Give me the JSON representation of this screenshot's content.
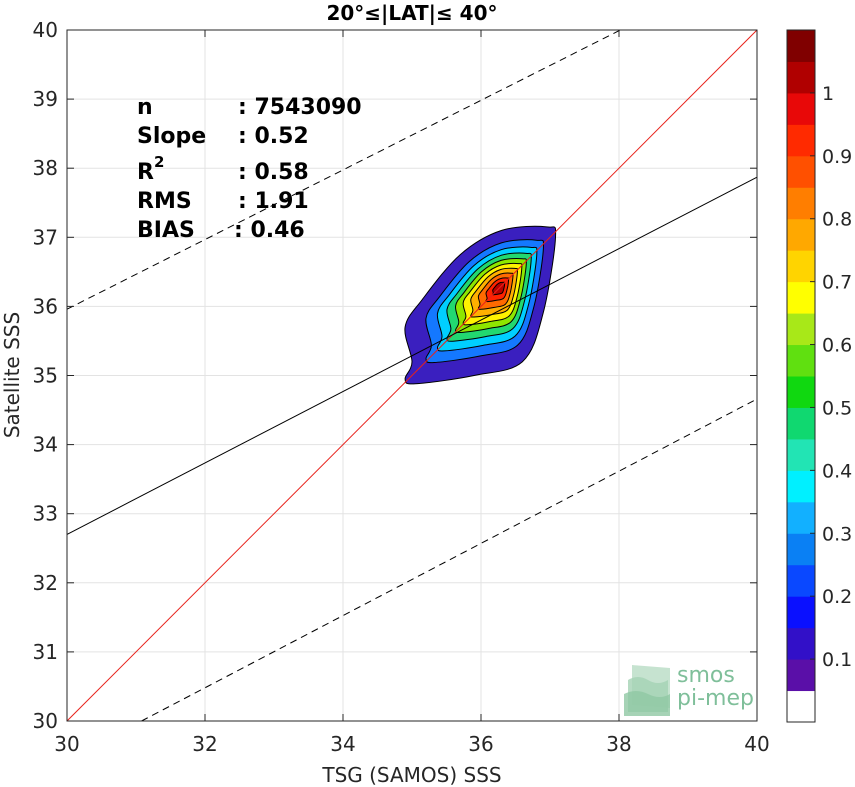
{
  "chart_data": {
    "type": "heatmap",
    "title": "20°≤|LAT|≤ 40°",
    "xlabel": "TSG (SAMOS) SSS",
    "ylabel": "Satellite SSS",
    "xlim": [
      30,
      40
    ],
    "ylim": [
      30,
      40
    ],
    "xticks": [
      "30",
      "32",
      "34",
      "36",
      "38",
      "40"
    ],
    "yticks": [
      "30",
      "31",
      "32",
      "33",
      "34",
      "35",
      "36",
      "37",
      "38",
      "39",
      "40"
    ],
    "grid": true,
    "stats": [
      {
        "label": "n",
        "value": ": 7543090"
      },
      {
        "label": "Slope",
        "value": ": 0.52"
      },
      {
        "label": "R",
        "sup": "2",
        "value": ": 0.58"
      },
      {
        "label": "RMS",
        "value": ": 1.91"
      },
      {
        "label": "BIAS",
        "value": ": 0.46"
      }
    ],
    "lines": [
      {
        "name": "one-to-one",
        "color": "#e8221b",
        "style": "solid",
        "x": [
          30,
          40
        ],
        "y": [
          30,
          40
        ]
      },
      {
        "name": "regression",
        "color": "#000000",
        "style": "solid",
        "x": [
          30,
          40
        ],
        "y": [
          32.7,
          37.87
        ]
      },
      {
        "name": "upper-bound",
        "color": "#000000",
        "style": "dashed",
        "x": [
          30,
          38.02
        ],
        "y": [
          35.96,
          40
        ]
      },
      {
        "name": "lower-bound",
        "color": "#000000",
        "style": "dashed",
        "x": [
          31.08,
          40
        ],
        "y": [
          30,
          34.66
        ]
      }
    ],
    "density_contours": {
      "center": [
        36.28,
        36.28
      ],
      "levels": [
        {
          "level": 0.05,
          "color": "#3a1fbf"
        },
        {
          "level": 0.15,
          "color": "#1478ff"
        },
        {
          "level": 0.25,
          "color": "#00cfff"
        },
        {
          "level": 0.35,
          "color": "#22d870"
        },
        {
          "level": 0.45,
          "color": "#8ee600"
        },
        {
          "level": 0.55,
          "color": "#fff200"
        },
        {
          "level": 0.65,
          "color": "#ffb000"
        },
        {
          "level": 0.75,
          "color": "#ff6a00"
        },
        {
          "level": 0.85,
          "color": "#ff2200"
        },
        {
          "level": 0.95,
          "color": "#b80000"
        }
      ]
    },
    "colorbar": {
      "ticks": [
        "0.1",
        "0.2",
        "0.3",
        "0.4",
        "0.5",
        "0.6",
        "0.7",
        "0.8",
        "0.9",
        "1"
      ],
      "colors": [
        "#ffffff",
        "#5a0fa8",
        "#3210c8",
        "#0a10ff",
        "#0a48ff",
        "#0a80f4",
        "#12b0ff",
        "#00f0ff",
        "#22e4b4",
        "#10d870",
        "#10d810",
        "#60e010",
        "#a8e818",
        "#ffff00",
        "#ffd400",
        "#ffa800",
        "#ff7e00",
        "#ff5000",
        "#ff2a00",
        "#e80808",
        "#b00000",
        "#800000"
      ]
    },
    "watermark": {
      "line1": "smos",
      "line2": "pi-mep"
    }
  }
}
